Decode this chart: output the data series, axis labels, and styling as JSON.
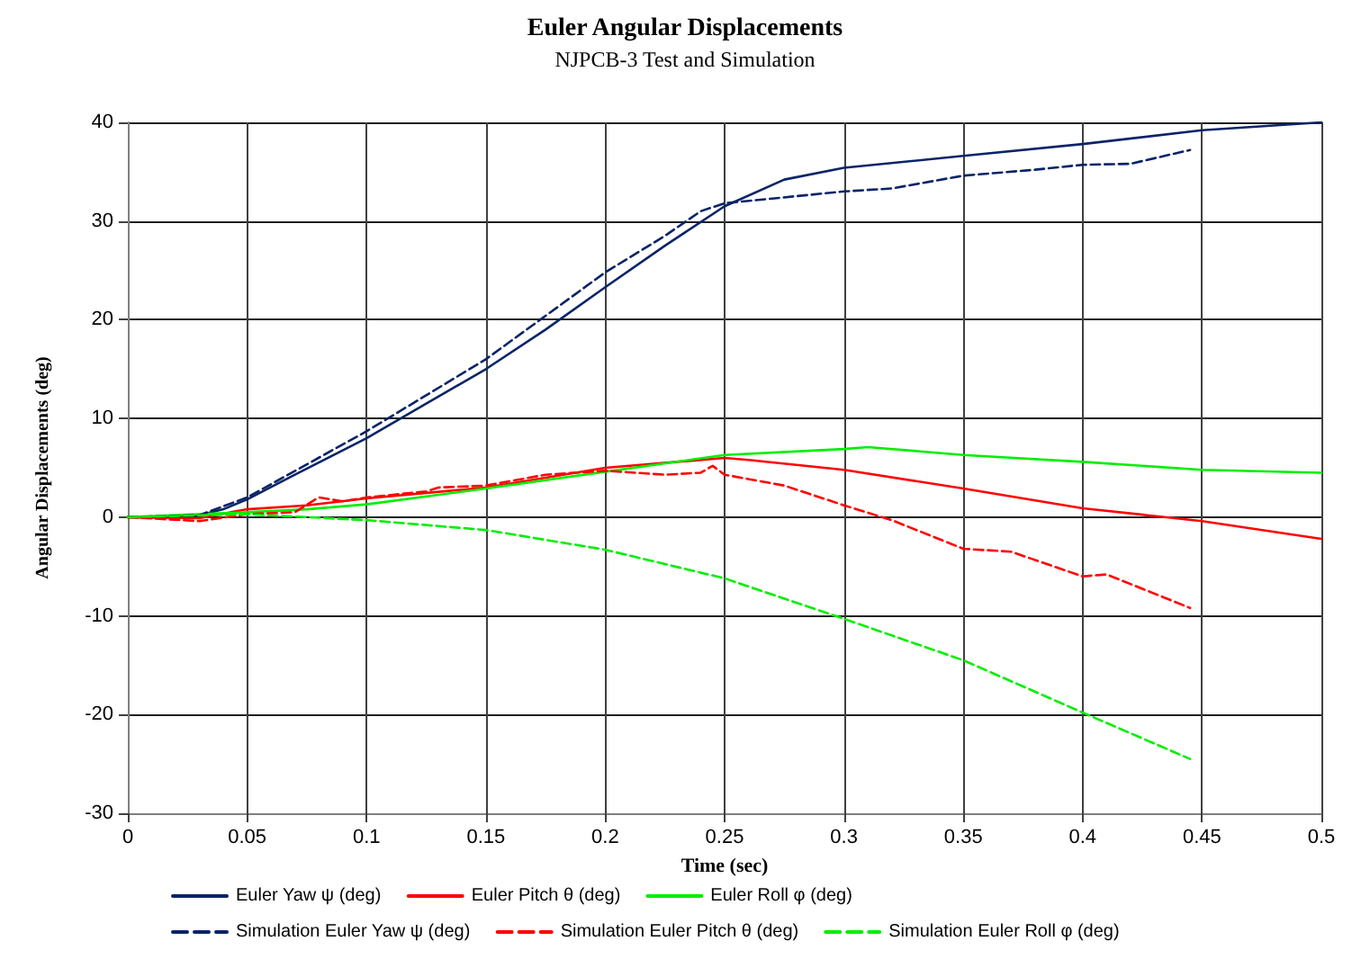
{
  "chart_data": {
    "type": "line",
    "title": "Euler Angular Displacements",
    "subtitle": "NJPCB-3 Test and Simulation",
    "xlabel": "Time (sec)",
    "ylabel": "Angular Displacements (deg)",
    "xlim": [
      0,
      0.5
    ],
    "xticks": [
      0,
      0.05,
      0.1,
      0.15,
      0.2,
      0.25,
      0.3,
      0.35,
      0.4,
      0.45,
      0.5
    ],
    "ylim": [
      -30,
      40
    ],
    "yticks": [
      -30,
      -20,
      -10,
      0,
      10,
      20,
      30,
      40
    ],
    "grid": true,
    "legend": "bottom",
    "marker": "none",
    "series": [
      {
        "name": "Euler Yaw ψ (deg)",
        "color": "#0a2468",
        "line_style": "solid",
        "x": [
          0,
          0.02,
          0.03,
          0.04,
          0.05,
          0.07,
          0.1,
          0.125,
          0.15,
          0.175,
          0.2,
          0.225,
          0.25,
          0.275,
          0.3,
          0.35,
          0.4,
          0.45,
          0.5
        ],
        "values": [
          0,
          0,
          0.2,
          0.8,
          1.8,
          4.3,
          8,
          11.5,
          15,
          19,
          23.3,
          27.5,
          31.5,
          34.2,
          35.4,
          36.6,
          37.8,
          39.2,
          40
        ]
      },
      {
        "name": "Euler Pitch θ (deg)",
        "color": "#ff0000",
        "line_style": "solid",
        "x": [
          0,
          0.03,
          0.05,
          0.075,
          0.1,
          0.15,
          0.2,
          0.25,
          0.26,
          0.3,
          0.35,
          0.4,
          0.45,
          0.5
        ],
        "values": [
          0,
          -0.1,
          0.8,
          1.2,
          1.9,
          3,
          5,
          6,
          5.8,
          4.8,
          2.9,
          0.9,
          -0.4,
          -2.2
        ]
      },
      {
        "name": "Euler Roll φ (deg)",
        "color": "#00ee00",
        "line_style": "solid",
        "x": [
          0,
          0.05,
          0.075,
          0.1,
          0.15,
          0.2,
          0.25,
          0.3,
          0.31,
          0.35,
          0.4,
          0.45,
          0.5
        ],
        "values": [
          0,
          0.5,
          0.8,
          1.3,
          2.9,
          4.6,
          6.3,
          6.9,
          7.1,
          6.3,
          5.6,
          4.8,
          4.5
        ]
      },
      {
        "name": "Simulation Euler Yaw ψ (deg)",
        "color": "#0a2468",
        "line_style": "dashed",
        "x": [
          0,
          0.03,
          0.05,
          0.1,
          0.15,
          0.2,
          0.225,
          0.24,
          0.25,
          0.3,
          0.32,
          0.35,
          0.38,
          0.4,
          0.42,
          0.445
        ],
        "values": [
          0,
          0.2,
          2,
          8.7,
          16,
          24.8,
          28.5,
          31,
          31.8,
          33,
          33.3,
          34.6,
          35.2,
          35.7,
          35.8,
          37.2
        ]
      },
      {
        "name": "Simulation Euler Pitch θ (deg)",
        "color": "#ff0000",
        "line_style": "dashed",
        "x": [
          0,
          0.03,
          0.05,
          0.07,
          0.08,
          0.09,
          0.1,
          0.125,
          0.13,
          0.15,
          0.175,
          0.2,
          0.225,
          0.24,
          0.245,
          0.25,
          0.275,
          0.3,
          0.32,
          0.35,
          0.37,
          0.4,
          0.41,
          0.445
        ],
        "values": [
          0,
          -0.4,
          0.3,
          0.5,
          2,
          1.6,
          2,
          2.6,
          3,
          3.2,
          4.3,
          4.7,
          4.3,
          4.5,
          5.2,
          4.3,
          3.2,
          1.2,
          -0.3,
          -3.2,
          -3.5,
          -6,
          -5.8,
          -9.2
        ]
      },
      {
        "name": "Simulation Euler Roll φ (deg)",
        "color": "#00ee00",
        "line_style": "dashed",
        "x": [
          0,
          0.05,
          0.1,
          0.15,
          0.2,
          0.25,
          0.3,
          0.35,
          0.4,
          0.445
        ],
        "values": [
          0,
          0.3,
          -0.3,
          -1.3,
          -3.3,
          -6.2,
          -10.3,
          -14.5,
          -19.8,
          -24.5
        ]
      }
    ]
  }
}
